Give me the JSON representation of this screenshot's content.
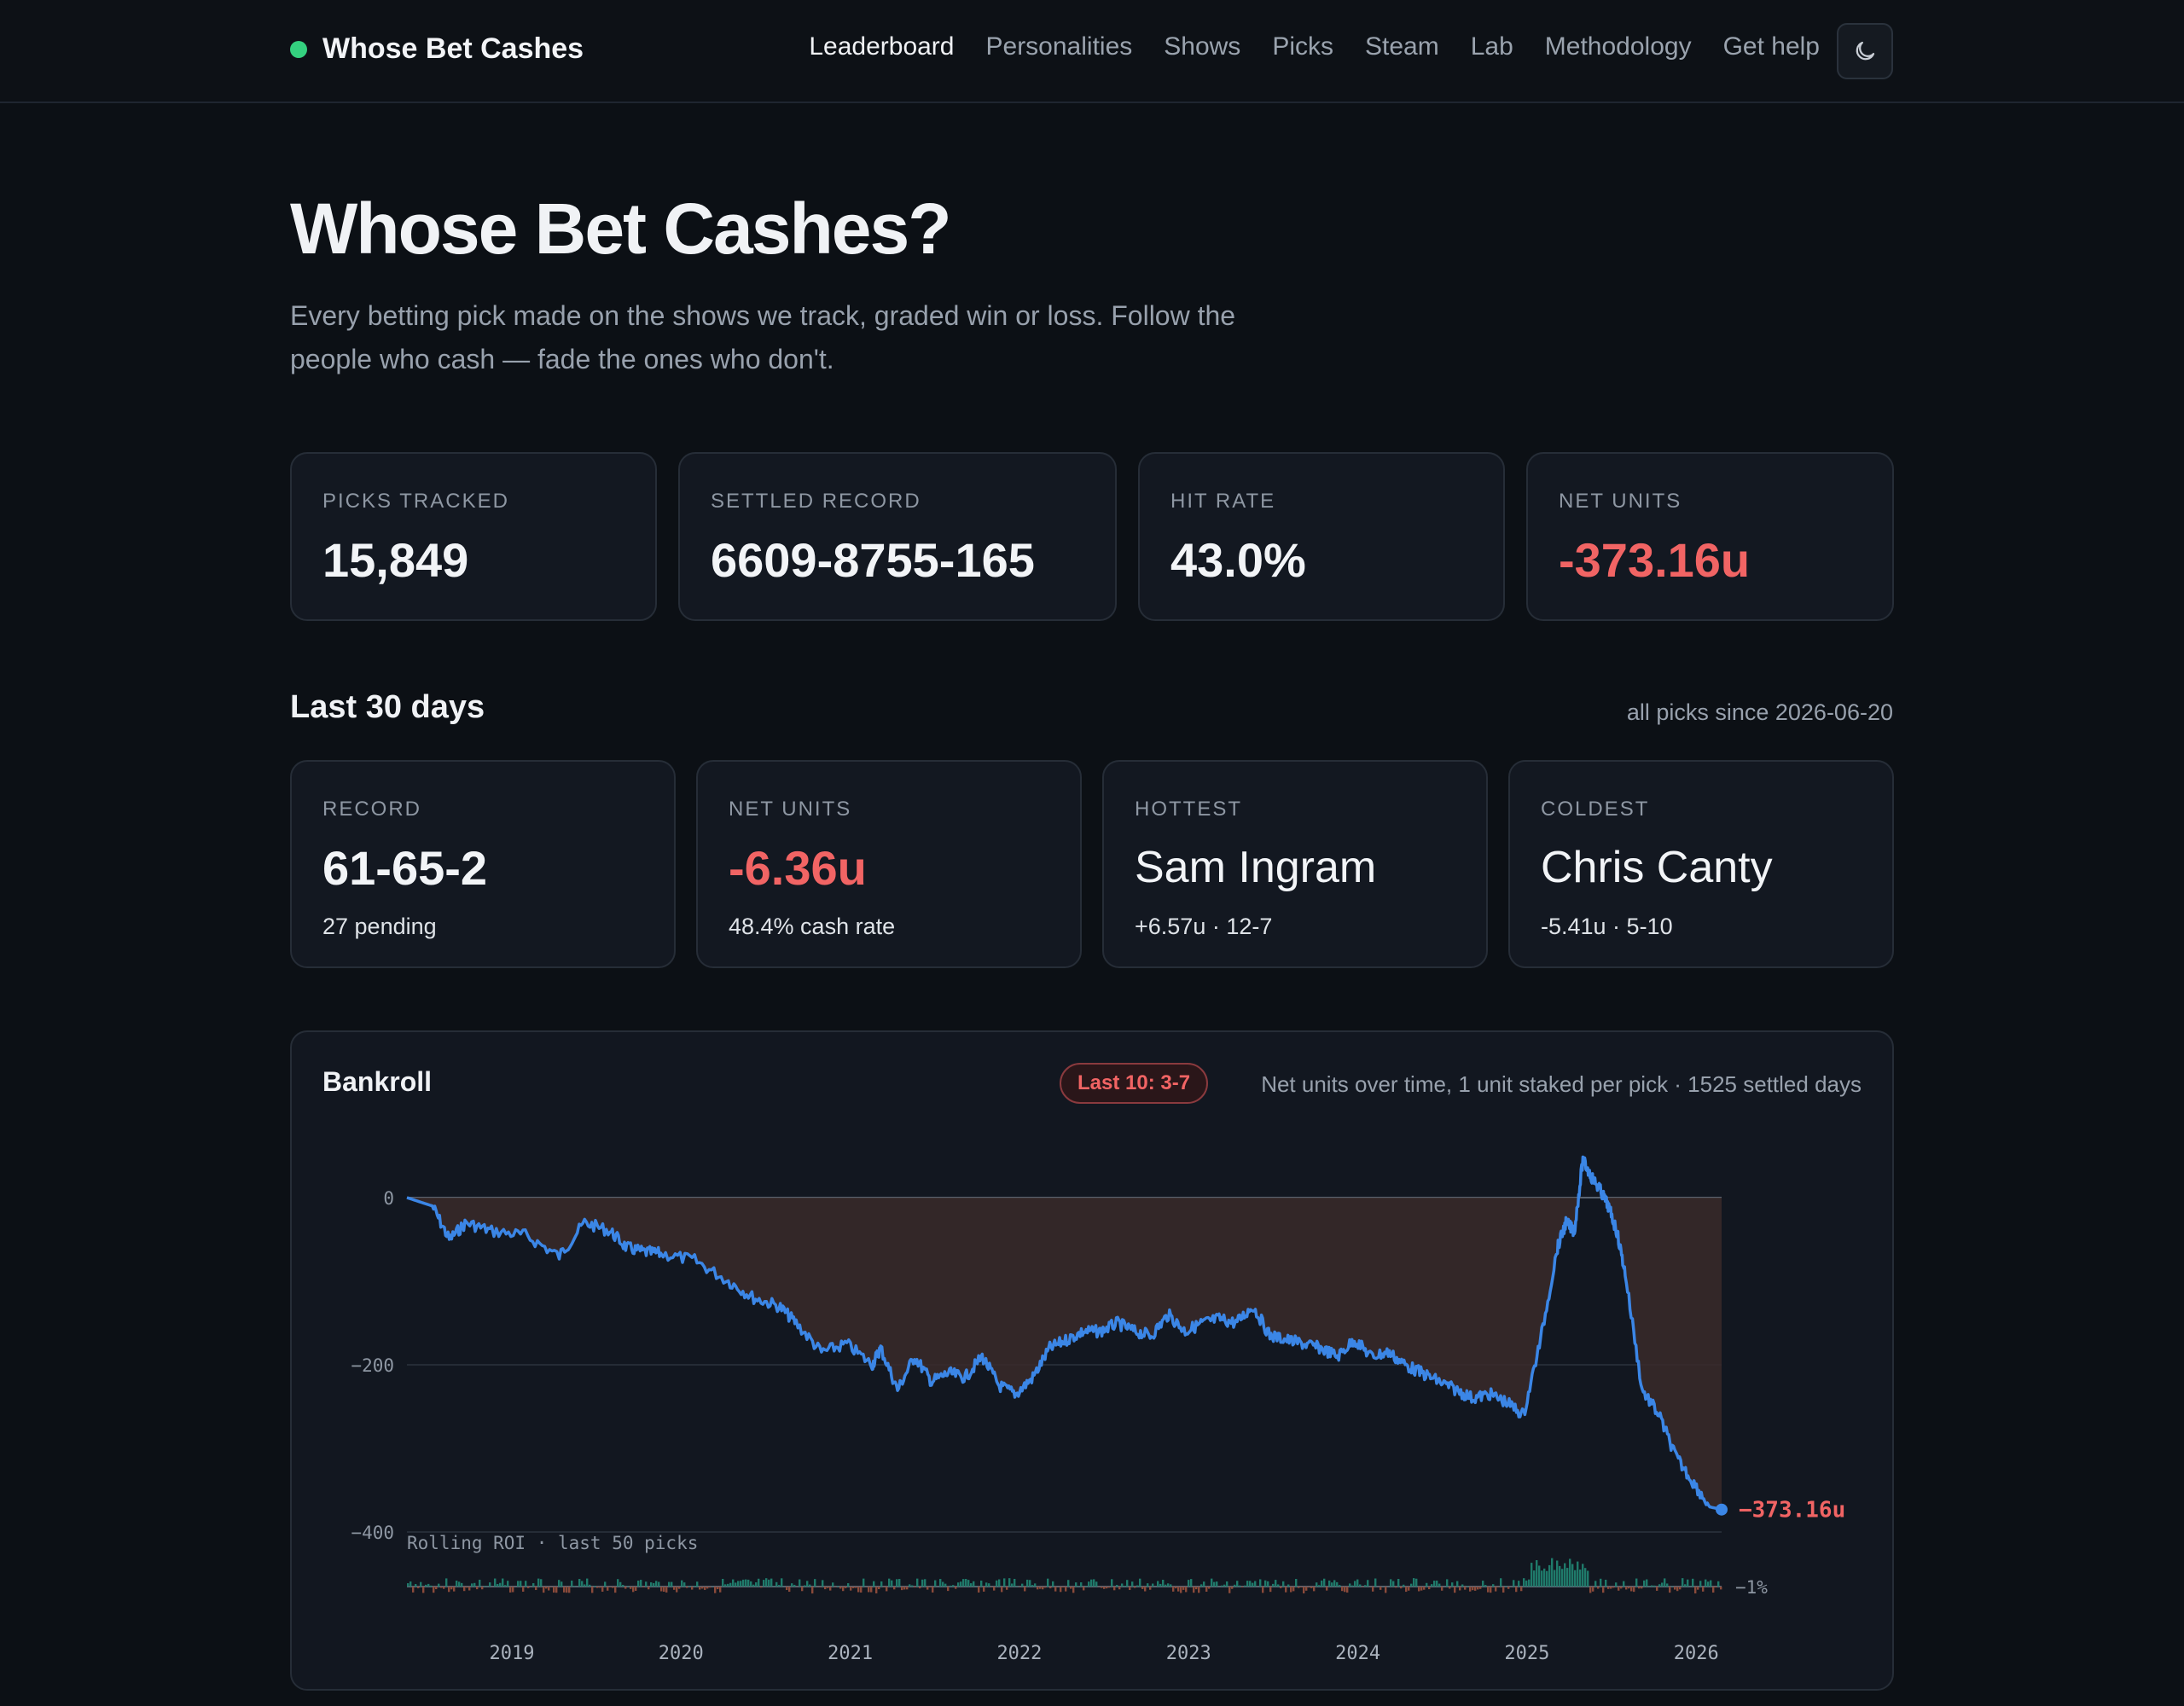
{
  "header": {
    "brand": "Whose Bet Cashes",
    "nav": [
      "Leaderboard",
      "Personalities",
      "Shows",
      "Picks",
      "Steam",
      "Lab",
      "Methodology",
      "Get help"
    ],
    "active_nav": "Leaderboard",
    "theme_icon": "moon-icon"
  },
  "hero": {
    "title": "Whose Bet Cashes?",
    "subtitle": "Every betting pick made on the shows we track, graded win or loss. Follow the people who cash — fade the ones who don't."
  },
  "totals": [
    {
      "label": "Picks tracked",
      "value": "15,849"
    },
    {
      "label": "Settled record",
      "value": "6609-8755-165"
    },
    {
      "label": "Hit rate",
      "value": "43.0%"
    },
    {
      "label": "Net units",
      "value": "-373.16u"
    }
  ],
  "recent": {
    "title": "Last 30 days",
    "meta": "all picks since 2026-06-20",
    "cards": [
      {
        "label": "Record",
        "value": "61-65-2",
        "sub": "27 pending"
      },
      {
        "label": "Net units",
        "value": "-6.36u",
        "sub": "48.4% cash rate"
      },
      {
        "label": "Hottest",
        "value": "Sam Ingram",
        "sub": "+6.57u · 12-7"
      },
      {
        "label": "Coldest",
        "value": "Chris Canty",
        "sub": "-5.41u · 5-10"
      }
    ]
  },
  "bankroll": {
    "title": "Bankroll",
    "badge": "Last 10: 3-7",
    "meta": "Net units over time, 1 unit staked per pick · 1525 settled days",
    "end_label": "−373.16u",
    "roi_label": "Rolling ROI · last 50 picks",
    "roi_end_label": "−1%",
    "colors": {
      "line": "#3b86e6",
      "negative_fill": "#3a2a2a",
      "roi_pos": "#1f7a6a",
      "roi_neg": "#8a4a3a",
      "end": "#f16464"
    }
  },
  "chart_data": {
    "type": "line",
    "title": "Bankroll",
    "ylabel": "",
    "xlabel": "",
    "ylim": [
      -400,
      50
    ],
    "yticks": [
      0,
      -200,
      -400
    ],
    "ytick_labels": [
      "0",
      "−200",
      "−400"
    ],
    "xticks": [
      2019,
      2020,
      2021,
      2022,
      2023,
      2024,
      2025,
      2026
    ],
    "x": [
      2018.7,
      2018.85,
      2018.95,
      2019.05,
      2019.2,
      2019.4,
      2019.6,
      2019.75,
      2019.9,
      2020.0,
      2020.1,
      2020.2,
      2020.4,
      2020.6,
      2020.75,
      2020.9,
      2021.0,
      2021.15,
      2021.3,
      2021.45,
      2021.5,
      2021.6,
      2021.7,
      2021.8,
      2021.9,
      2022.0,
      2022.1,
      2022.2,
      2022.3,
      2022.4,
      2022.5,
      2022.6,
      2022.7,
      2022.8,
      2022.9,
      2023.0,
      2023.1,
      2023.2,
      2023.3,
      2023.4,
      2023.5,
      2023.6,
      2023.7,
      2023.8,
      2023.9,
      2024.0,
      2024.1,
      2024.2,
      2024.3,
      2024.4,
      2024.5,
      2024.6,
      2024.7,
      2024.8,
      2024.9,
      2025.0,
      2025.1,
      2025.2,
      2025.3,
      2025.4,
      2025.5,
      2025.55,
      2025.6,
      2025.65,
      2025.7,
      2025.75,
      2025.8,
      2025.85,
      2025.9,
      2026.0,
      2026.1,
      2026.2,
      2026.3,
      2026.4,
      2026.47
    ],
    "values": [
      0,
      -10,
      -50,
      -30,
      -40,
      -45,
      -70,
      -30,
      -40,
      -60,
      -65,
      -67,
      -75,
      -100,
      -120,
      -130,
      -150,
      -185,
      -175,
      -200,
      -180,
      -230,
      -190,
      -220,
      -210,
      -215,
      -190,
      -225,
      -235,
      -215,
      -180,
      -170,
      -160,
      -160,
      -150,
      -160,
      -165,
      -140,
      -160,
      -150,
      -145,
      -150,
      -130,
      -165,
      -170,
      -175,
      -180,
      -190,
      -170,
      -190,
      -185,
      -200,
      -210,
      -220,
      -230,
      -240,
      -235,
      -245,
      -260,
      -170,
      -60,
      -30,
      -40,
      45,
      25,
      10,
      -10,
      -40,
      -90,
      -230,
      -260,
      -310,
      -340,
      -370,
      -373.16
    ]
  },
  "roi_data": {
    "type": "bar",
    "label": "Rolling ROI · last 50 picks",
    "end_value": -1
  }
}
